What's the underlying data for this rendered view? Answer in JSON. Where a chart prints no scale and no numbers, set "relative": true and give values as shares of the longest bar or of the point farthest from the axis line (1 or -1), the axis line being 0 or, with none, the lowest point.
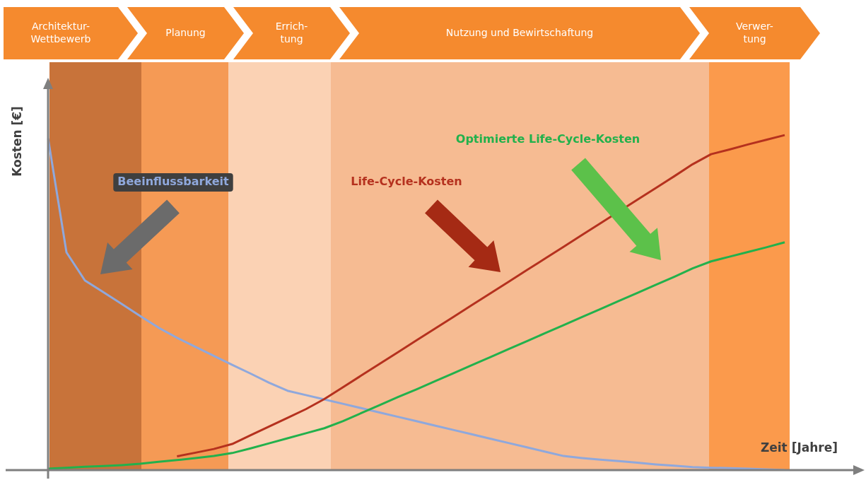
{
  "chart_data": {
    "type": "line",
    "relative": true,
    "xlabel": "Zeit [Jahre]",
    "ylabel": "Kosten [€]",
    "marker": "none",
    "line_style": "solid",
    "categories": [
      null,
      null,
      null,
      null,
      null,
      null,
      null,
      null,
      null,
      null,
      null,
      null,
      null,
      null,
      null,
      null,
      null,
      null,
      null,
      null,
      null,
      null,
      null,
      null,
      null,
      null,
      null,
      null,
      null,
      null,
      null,
      null,
      null,
      null,
      null,
      null,
      null,
      null,
      null,
      null,
      null
    ],
    "series": [
      {
        "name": "Beeinflussbarkeit",
        "color": "#8fa8dc",
        "values": [
          0.99,
          0.65,
          0.566,
          0.531,
          0.496,
          0.46,
          0.425,
          0.395,
          0.368,
          0.341,
          0.314,
          0.288,
          0.261,
          0.237,
          0.224,
          0.211,
          0.198,
          0.185,
          0.172,
          0.159,
          0.146,
          0.133,
          0.12,
          0.107,
          0.094,
          0.081,
          0.068,
          0.055,
          0.042,
          0.036,
          0.031,
          0.027,
          0.022,
          0.017,
          0.013,
          0.009,
          0.007,
          0.006,
          0.004,
          0.002,
          0
        ]
      },
      {
        "name": "Life-Cycle-Kosten",
        "color": "#b5311e",
        "values": [
          null,
          null,
          null,
          null,
          null,
          null,
          null,
          0.041,
          0.052,
          0.063,
          0.078,
          0.104,
          0.13,
          0.156,
          0.182,
          0.212,
          0.247,
          0.282,
          0.317,
          0.352,
          0.387,
          0.422,
          0.457,
          0.492,
          0.527,
          0.562,
          0.597,
          0.632,
          0.667,
          0.702,
          0.737,
          null,
          0.807,
          0.842,
          0.877,
          0.913,
          0.943,
          0.957,
          0.972,
          0.986,
          1
        ]
      },
      {
        "name": "Optimierte Life-Cycle-Kosten",
        "color": "#22b14c",
        "values": [
          0.004,
          0.007,
          0.01,
          0.012,
          0.015,
          0.019,
          0.025,
          0.03,
          0.036,
          0.042,
          0.051,
          0.065,
          0.08,
          0.095,
          0.11,
          0.125,
          0.146,
          0.17,
          0.194,
          0.218,
          0.241,
          0.265,
          0.289,
          0.313,
          0.337,
          0.361,
          0.385,
          0.409,
          0.433,
          0.457,
          0.481,
          0.505,
          0.529,
          0.553,
          0.577,
          0.602,
          0.623,
          0.637,
          0.651,
          0.665,
          0.68
        ]
      }
    ],
    "annotations": [
      "Architektur-\nWettbewerb",
      "Planung",
      "Errich-\ntung",
      "Nutzung und Bewirtschaftung",
      "Verwer-\ntung"
    ]
  }
}
